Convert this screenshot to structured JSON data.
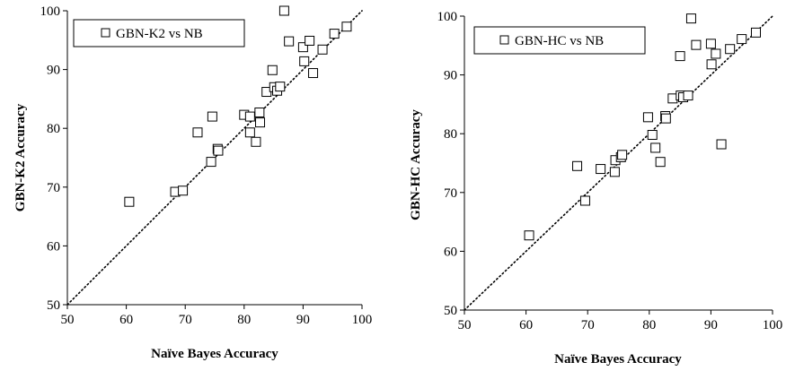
{
  "chart_data": [
    {
      "type": "scatter",
      "title": "",
      "xlabel": "Naïve Bayes Accuracy",
      "ylabel": "GBN-K2 Accuracy",
      "xlim": [
        50,
        100
      ],
      "ylim": [
        50,
        100
      ],
      "xticks": [
        "50",
        "60",
        "70",
        "80",
        "90",
        "100"
      ],
      "yticks": [
        "50",
        "60",
        "70",
        "80",
        "90",
        "100"
      ],
      "grid": false,
      "legend_position": "top-left",
      "reference_line": "y = x",
      "series": [
        {
          "name": "GBN-K2 vs NB",
          "marker": "open-square",
          "points": [
            [
              60.5,
              67.5
            ],
            [
              68.3,
              69.2
            ],
            [
              69.6,
              69.4
            ],
            [
              72.1,
              79.3
            ],
            [
              74.4,
              74.3
            ],
            [
              74.6,
              82.0
            ],
            [
              75.5,
              76.5
            ],
            [
              75.6,
              76.2
            ],
            [
              80.0,
              82.3
            ],
            [
              81.0,
              82.0
            ],
            [
              81.0,
              79.3
            ],
            [
              82.0,
              77.7
            ],
            [
              82.6,
              82.7
            ],
            [
              82.7,
              81.0
            ],
            [
              83.8,
              86.2
            ],
            [
              84.8,
              89.9
            ],
            [
              85.1,
              87.0
            ],
            [
              85.6,
              86.4
            ],
            [
              86.1,
              87.1
            ],
            [
              86.8,
              100.0
            ],
            [
              87.6,
              94.8
            ],
            [
              90.0,
              93.8
            ],
            [
              90.2,
              91.4
            ],
            [
              91.1,
              94.9
            ],
            [
              91.7,
              89.4
            ],
            [
              93.3,
              93.4
            ],
            [
              95.3,
              96.1
            ],
            [
              97.4,
              97.3
            ]
          ]
        }
      ]
    },
    {
      "type": "scatter",
      "title": "",
      "xlabel": "Naïve Bayes Accuracy",
      "ylabel": "GBN-HC Accuracy",
      "xlim": [
        50,
        100
      ],
      "ylim": [
        50,
        100
      ],
      "xticks": [
        "50",
        "60",
        "70",
        "80",
        "90",
        "100"
      ],
      "yticks": [
        "50",
        "60",
        "70",
        "80",
        "90",
        "100"
      ],
      "grid": false,
      "legend_position": "top-left",
      "reference_line": "y = x",
      "series": [
        {
          "name": "GBN-HC vs NB",
          "marker": "open-square",
          "points": [
            [
              60.5,
              62.7
            ],
            [
              68.3,
              74.5
            ],
            [
              69.6,
              68.6
            ],
            [
              72.1,
              74.0
            ],
            [
              74.4,
              73.5
            ],
            [
              74.5,
              75.5
            ],
            [
              75.4,
              76.0
            ],
            [
              75.6,
              76.4
            ],
            [
              79.8,
              82.8
            ],
            [
              80.5,
              79.8
            ],
            [
              81.0,
              77.6
            ],
            [
              81.8,
              75.2
            ],
            [
              82.6,
              83.0
            ],
            [
              82.7,
              82.6
            ],
            [
              83.8,
              86.0
            ],
            [
              85.0,
              93.2
            ],
            [
              85.1,
              86.5
            ],
            [
              85.5,
              86.2
            ],
            [
              86.3,
              86.5
            ],
            [
              86.8,
              99.6
            ],
            [
              87.6,
              95.1
            ],
            [
              90.0,
              95.3
            ],
            [
              90.1,
              91.8
            ],
            [
              90.8,
              93.6
            ],
            [
              91.7,
              78.2
            ],
            [
              93.1,
              94.4
            ],
            [
              95.0,
              96.1
            ],
            [
              97.3,
              97.2
            ]
          ]
        }
      ]
    }
  ]
}
